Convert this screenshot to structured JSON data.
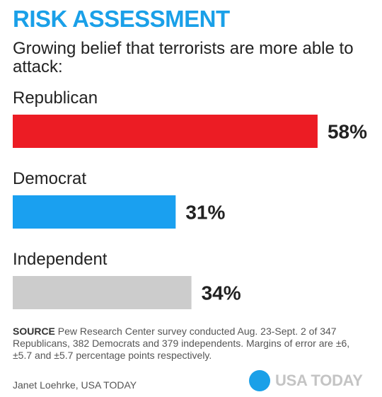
{
  "header": {
    "title": "RISK ASSESSMENT",
    "subtitle": "Growing belief that terrorists are more able to attack:"
  },
  "chart_data": {
    "type": "bar",
    "orientation": "horizontal",
    "categories": [
      "Republican",
      "Democrat",
      "Independent"
    ],
    "values": [
      58,
      31,
      34
    ],
    "value_labels": [
      "58%",
      "31%",
      "34%"
    ],
    "colors": [
      "#ec1c24",
      "#1aa0f0",
      "#cccccc"
    ],
    "xlim": [
      0,
      100
    ],
    "grid": false,
    "legend": "none"
  },
  "footer": {
    "source_label": "SOURCE",
    "source_text": " Pew Research Center survey conducted Aug. 23-Sept. 2 of 347 Republicans, 382 Democrats and 379 independents. Margins of error are ±6, ±5.7 and ±5.7 percentage points respectively.",
    "credit": "Janet Loehrke, USA TODAY",
    "logo_text": "USA TODAY"
  }
}
